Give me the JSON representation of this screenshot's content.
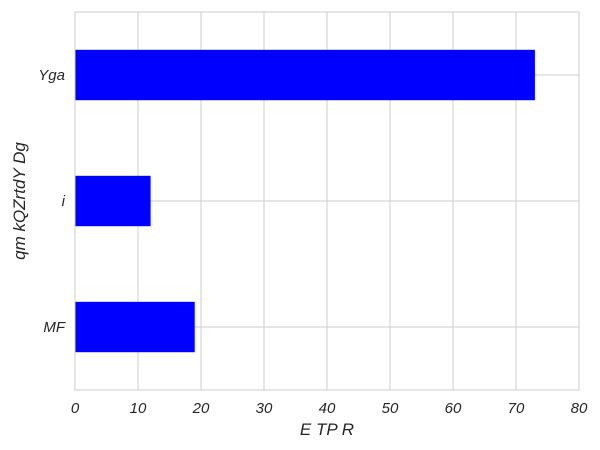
{
  "chart_data": {
    "type": "bar",
    "orientation": "horizontal",
    "categories": [
      "MF",
      "i",
      "Yga"
    ],
    "values": [
      19,
      12,
      73
    ],
    "xlabel": "E TP R",
    "ylabel": "qm kQZrtdY Dg",
    "xlim": [
      0,
      80
    ],
    "xticks": [
      0,
      10,
      20,
      30,
      40,
      50,
      60,
      70,
      80
    ],
    "bar_color": "#0000ff",
    "grid": true
  }
}
